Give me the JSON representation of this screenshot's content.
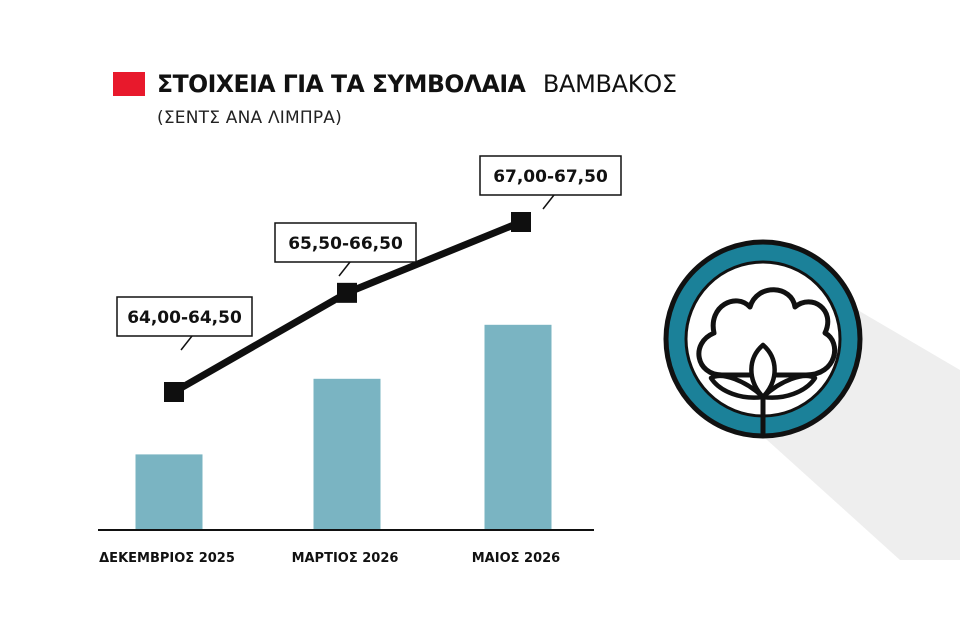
{
  "title": {
    "bold": "ΣΤΟΙΧΕΙΑ ΓΙΑ ΤΑ ΣΥΜΒΟΛΑΙΑ",
    "light": "ΒΑΜΒΑΚΟΣ",
    "subtitle": "(ΣΕΝΤΣ ΑΝΑ ΛΙΜΠΡΑ)"
  },
  "colors": {
    "title_square": "#e8192c",
    "bars": "#7ab4c2",
    "line": "#0f0f0f",
    "icon_ring": "#1b8199",
    "icon_outline": "#111111",
    "shadow": "#eeeeee"
  },
  "icon": {
    "name": "cotton-icon"
  },
  "chart_data": {
    "type": "bar+line",
    "title": "ΣΤΟΙΧΕΙΑ ΓΙΑ ΤΑ ΣΥΜΒΟΛΑΙΑ ΒΑΜΒΑΚΟΣ",
    "ylabel": "(ΣΕΝΤΣ ΑΝΑ ΛΙΜΠΡΑ)",
    "categories": [
      "ΔΕΚΕΜΒΡΙΟΣ 2025",
      "ΜΑΡΤΙΟΣ 2026",
      "ΜΑΙΟΣ 2026"
    ],
    "series": [
      {
        "name": "bars",
        "values": [
          64.25,
          66.0,
          67.25
        ]
      },
      {
        "name": "line",
        "values": [
          64.25,
          66.0,
          67.25
        ]
      }
    ],
    "data_labels": [
      "64,00-64,50",
      "65,50-66,50",
      "67,00-67,50"
    ],
    "ranges": [
      [
        64.0,
        64.5
      ],
      [
        65.5,
        66.5
      ],
      [
        67.0,
        67.5
      ]
    ],
    "ylim": [
      62.5,
      67.5
    ],
    "grid": false,
    "legend": "none"
  }
}
